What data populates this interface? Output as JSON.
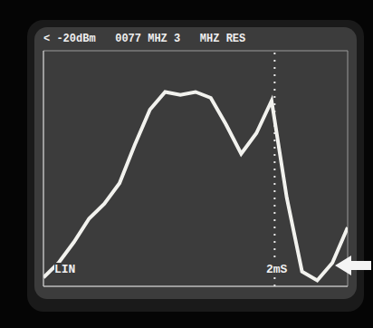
{
  "chart_data": {
    "type": "line",
    "title": "< -20dBm   0077 MHZ 3   MHZ RES",
    "annotations": [
      "LIN",
      "2mS"
    ],
    "x": [
      0,
      0.5,
      1,
      1.5,
      2,
      2.5,
      3,
      3.5,
      4,
      4.5,
      5,
      5.5,
      6,
      6.5,
      7,
      7.5,
      8,
      8.5,
      9,
      9.5,
      10
    ],
    "values": [
      0.3,
      0.8,
      1.5,
      2.3,
      2.8,
      3.5,
      4.8,
      6.0,
      6.6,
      6.5,
      6.6,
      6.4,
      5.5,
      4.5,
      5.2,
      6.3,
      3.0,
      0.5,
      0.2,
      0.8,
      2.0
    ],
    "xlim": [
      0,
      10
    ],
    "ylim": [
      0,
      8
    ],
    "xticks": [
      0,
      1,
      2,
      3,
      4,
      5,
      6,
      7,
      8,
      9,
      10
    ],
    "yticks": [
      0,
      1,
      2,
      3,
      4,
      5,
      6,
      7,
      8
    ],
    "grid": true,
    "tick_labels": false,
    "color": "#f2f2ee"
  }
}
